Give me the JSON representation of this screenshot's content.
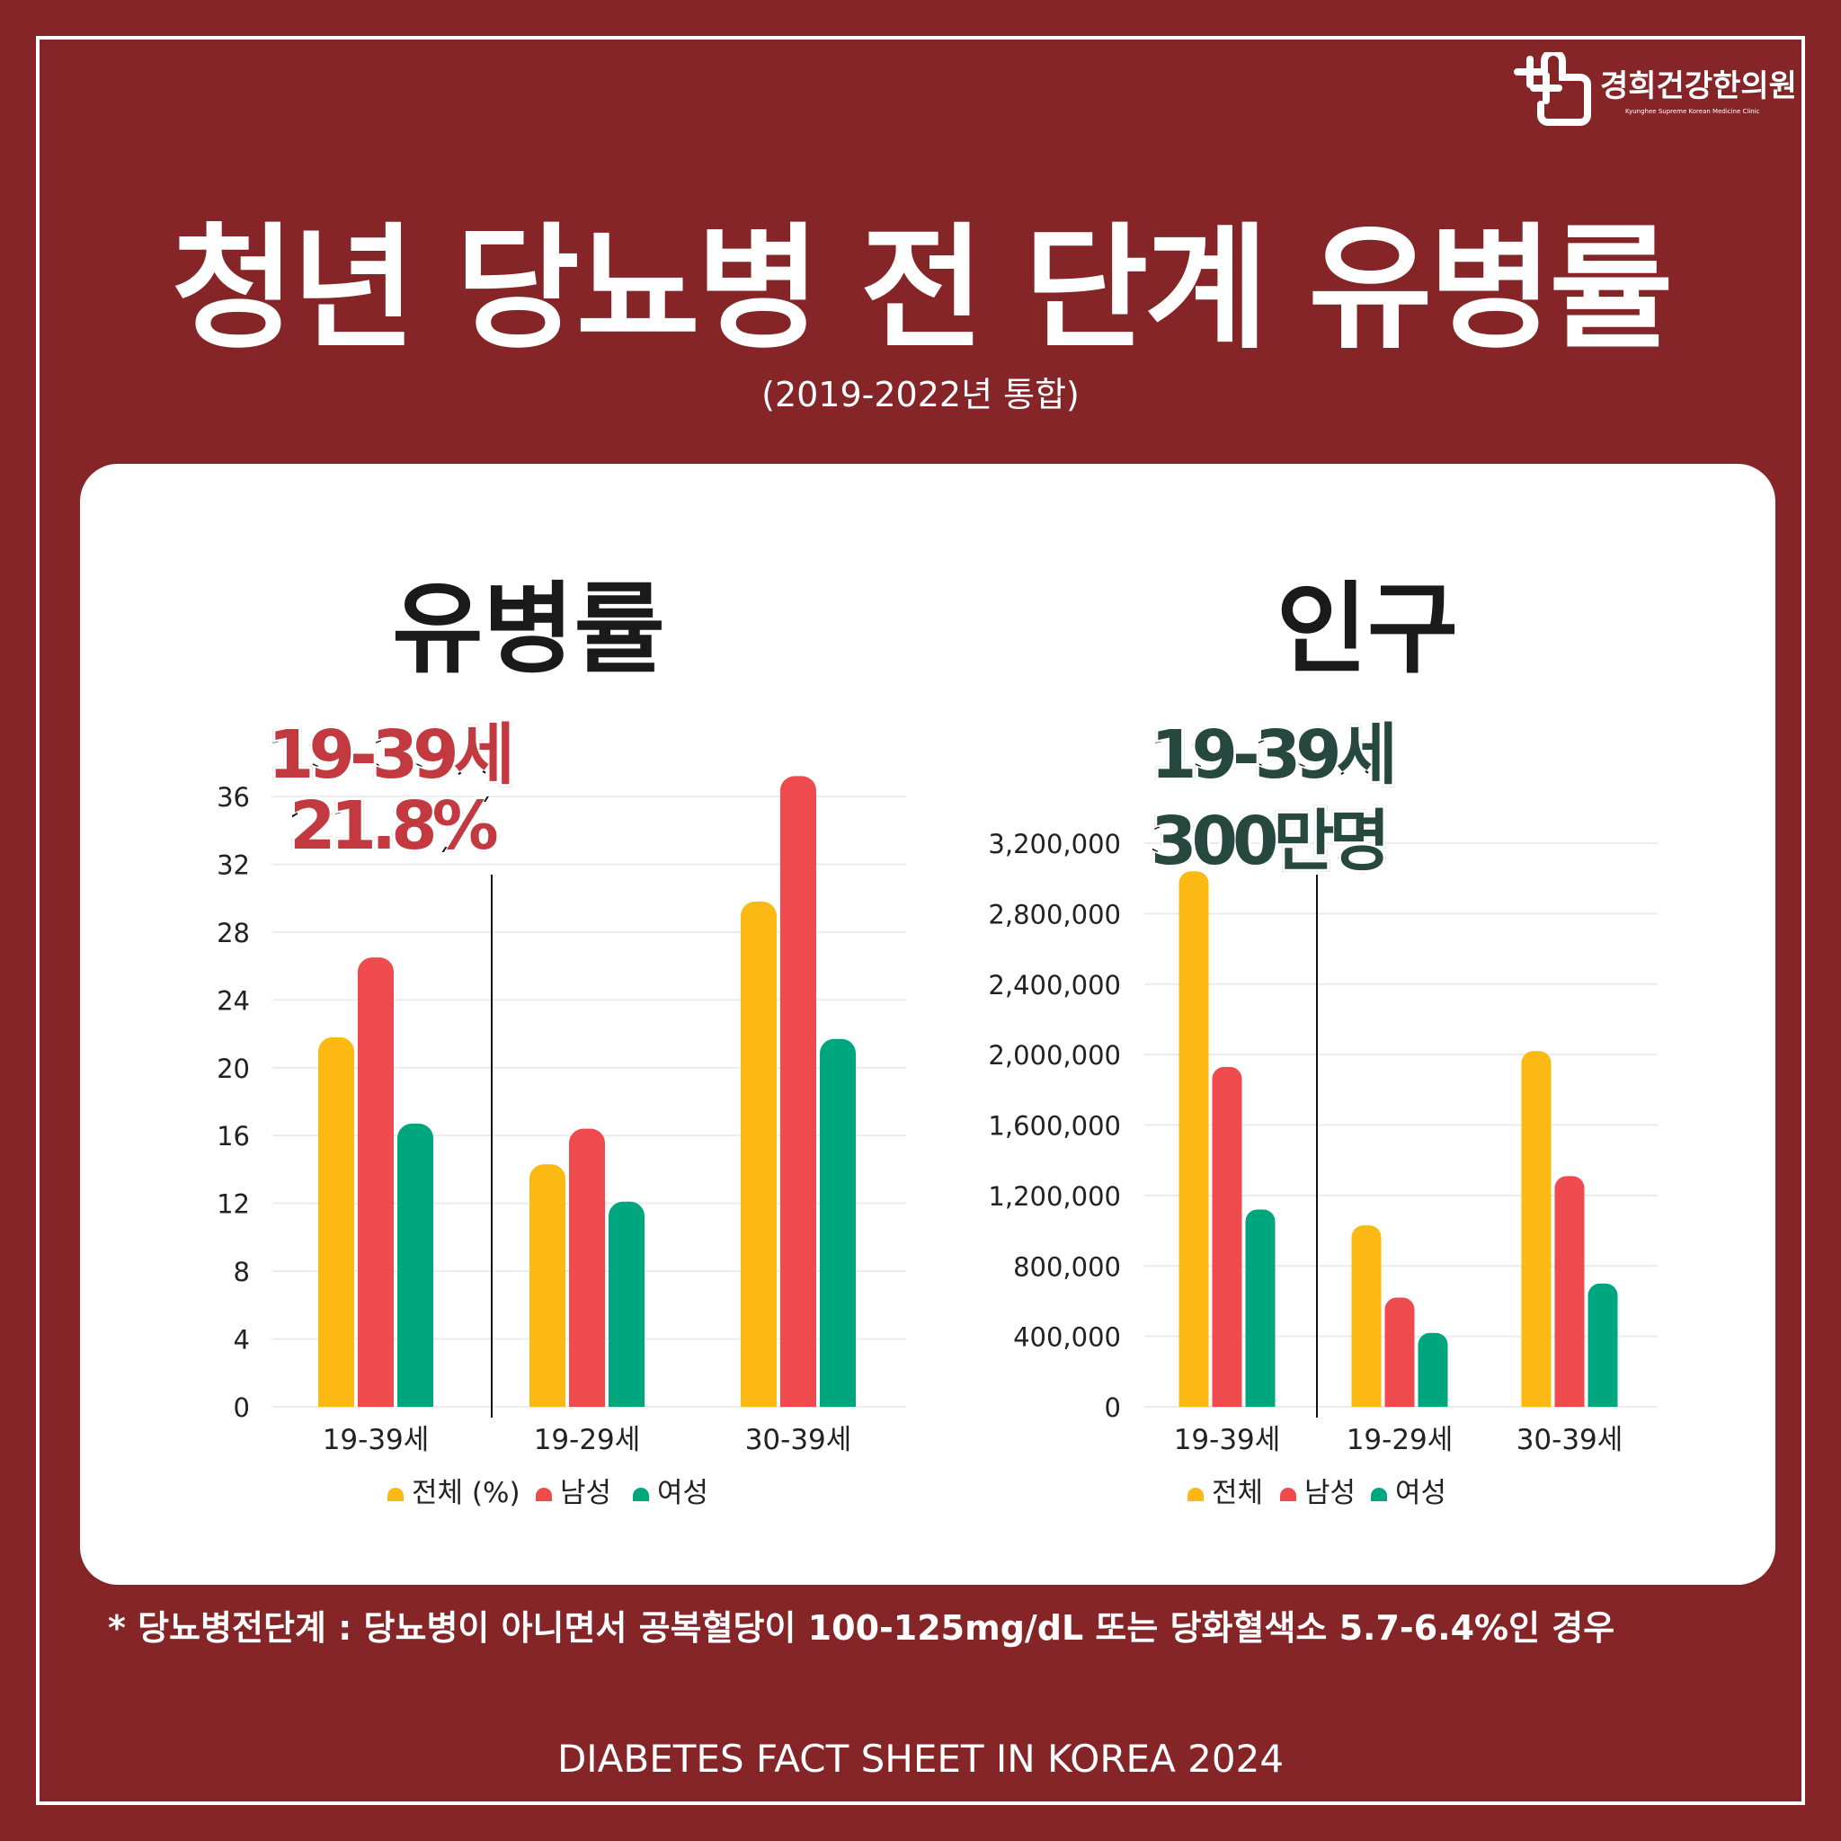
{
  "logo": {
    "name": "경희건강한의원",
    "subtitle": "Kyunghee Supreme Korean Medicine Clinic"
  },
  "title": "청년 당뇨병 전 단계 유병률",
  "subtitle": "(2019-2022년 통합)",
  "colors": {
    "total": "#FDB913",
    "male": "#EF4B4F",
    "female": "#00A77E",
    "background": "#852528"
  },
  "callouts": {
    "left_age": "19-39세",
    "left_value": "21.8%",
    "right_age": "19-39세",
    "right_value": "300만명"
  },
  "chart_data": [
    {
      "type": "bar",
      "title": "유병률",
      "categories": [
        "19-39세",
        "19-29세",
        "30-39세"
      ],
      "series": [
        {
          "name": "전체 (%)",
          "values": [
            21.8,
            14.3,
            29.8
          ]
        },
        {
          "name": "남성",
          "values": [
            26.5,
            16.4,
            37.2
          ]
        },
        {
          "name": "여성",
          "values": [
            16.7,
            12.1,
            21.7
          ]
        }
      ],
      "ylim": [
        0,
        36
      ],
      "yticks": [
        "0",
        "4",
        "8",
        "12",
        "16",
        "20",
        "24",
        "28",
        "32",
        "36"
      ],
      "grid": true,
      "legend": "bottom"
    },
    {
      "type": "bar",
      "title": "인구",
      "categories": [
        "19-39세",
        "19-29세",
        "30-39세"
      ],
      "series": [
        {
          "name": "전체",
          "values": [
            3040000,
            1030000,
            2020000
          ]
        },
        {
          "name": "남성",
          "values": [
            1930000,
            620000,
            1310000
          ]
        },
        {
          "name": "여성",
          "values": [
            1120000,
            420000,
            700000
          ]
        }
      ],
      "ylim": [
        0,
        3200000
      ],
      "yticks": [
        "0",
        "400,000",
        "800,000",
        "1,200,000",
        "1,600,000",
        "2,000,000",
        "2,400,000",
        "2,800,000",
        "3,200,000"
      ],
      "grid": true,
      "legend": "bottom"
    }
  ],
  "footnote": "* 당뇨병전단계 : 당뇨병이 아니면서 공복혈당이 100-125mg/dL 또는 당화혈색소 5.7-6.4%인 경우",
  "source": "DIABETES FACT SHEET IN KOREA 2024"
}
